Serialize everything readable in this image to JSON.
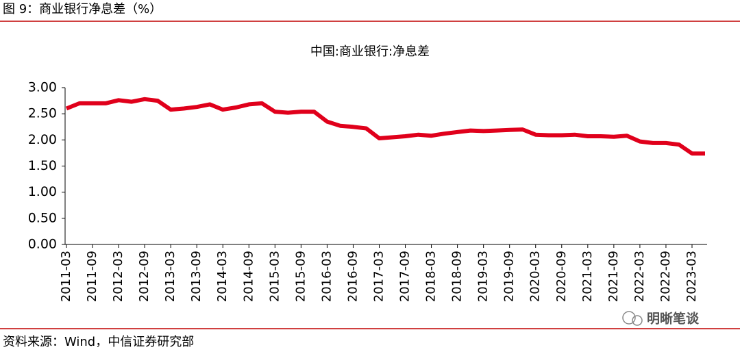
{
  "header": {
    "title": "图 9：商业银行净息差（%）"
  },
  "chart_data": {
    "type": "line",
    "title": "中国:商业银行:净息差",
    "categories": [
      "2011-03",
      null,
      "2011-09",
      null,
      "2012-03",
      null,
      "2012-09",
      null,
      "2013-03",
      null,
      "2013-09",
      null,
      "2014-03",
      null,
      "2014-09",
      null,
      "2015-03",
      null,
      "2015-09",
      null,
      "2016-03",
      null,
      "2016-09",
      null,
      "2017-03",
      null,
      "2017-09",
      null,
      "2018-03",
      null,
      "2018-09",
      null,
      "2019-03",
      null,
      "2019-09",
      null,
      "2020-03",
      null,
      "2020-09",
      null,
      "2021-03",
      null,
      "2021-09",
      null,
      "2022-03",
      null,
      "2022-09",
      null,
      "2023-03",
      null
    ],
    "series": [
      {
        "name": "中国:商业银行:净息差",
        "color": "#e0001b",
        "values": [
          2.6,
          2.7,
          2.7,
          2.7,
          2.76,
          2.73,
          2.78,
          2.75,
          2.58,
          2.6,
          2.63,
          2.68,
          2.58,
          2.62,
          2.68,
          2.7,
          2.54,
          2.52,
          2.54,
          2.54,
          2.35,
          2.27,
          2.25,
          2.22,
          2.03,
          2.05,
          2.07,
          2.1,
          2.08,
          2.12,
          2.15,
          2.18,
          2.17,
          2.18,
          2.19,
          2.2,
          2.1,
          2.09,
          2.09,
          2.1,
          2.07,
          2.07,
          2.06,
          2.08,
          1.97,
          1.94,
          1.94,
          1.91,
          1.74,
          1.74
        ]
      }
    ],
    "ylim": [
      0,
      3
    ],
    "yticks": [
      {
        "value": 0,
        "label": "0.00"
      },
      {
        "value": 0.5,
        "label": "0.50"
      },
      {
        "value": 1,
        "label": "1.00"
      },
      {
        "value": 1.5,
        "label": "1.50"
      },
      {
        "value": 2,
        "label": "2.00"
      },
      {
        "value": 2.5,
        "label": "2.50"
      },
      {
        "value": 3,
        "label": "3.00"
      }
    ]
  },
  "footer": {
    "source": "资料来源：Wind，中信证券研究部",
    "watermark": "明晰笔谈"
  }
}
